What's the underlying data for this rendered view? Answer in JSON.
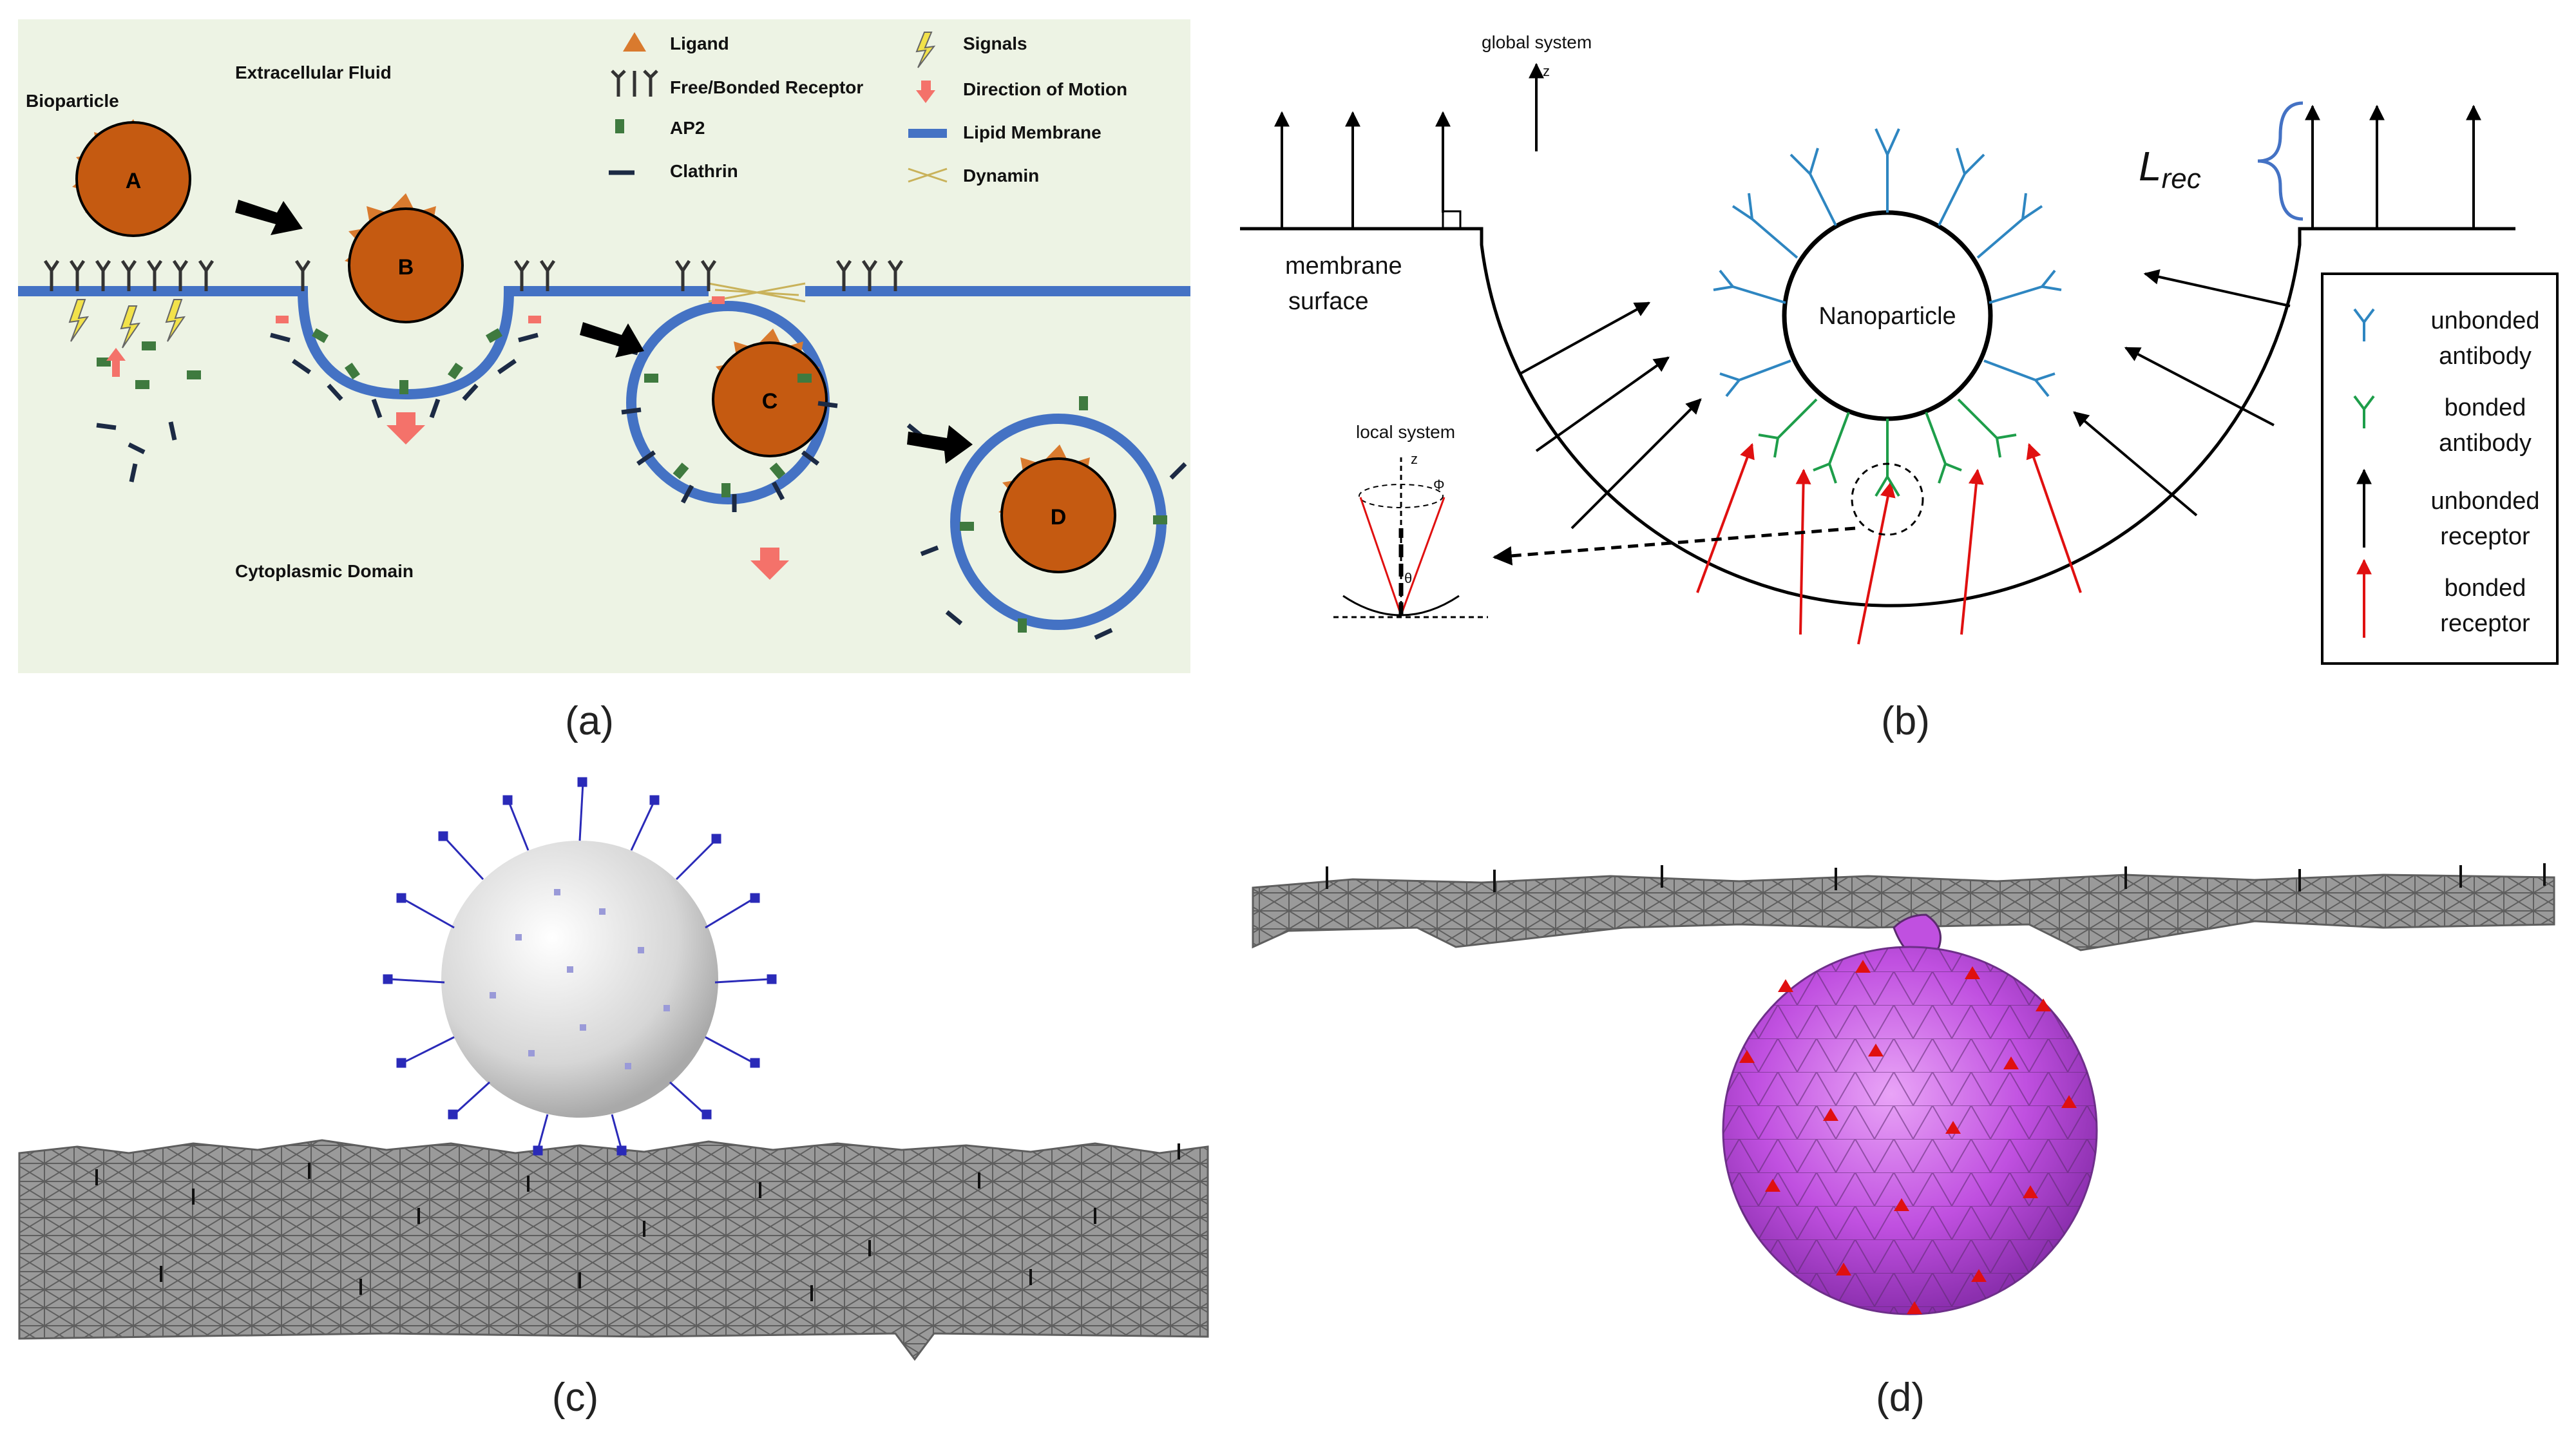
{
  "panel_a": {
    "caption": "(a)",
    "bioparticle": "Bioparticle",
    "extracellular": "Extracellular Fluid",
    "cytoplasmic": "Cytoplasmic Domain",
    "stages": [
      "A",
      "B",
      "C",
      "D"
    ],
    "legend": {
      "ligand": "Ligand",
      "receptor": "Free/Bonded Receptor",
      "ap2": "AP2",
      "clathrin": "Clathrin",
      "signals": "Signals",
      "motion": "Direction of Motion",
      "membrane": "Lipid Membrane",
      "dynamin": "Dynamin"
    },
    "colors": {
      "background": "#edf3e4",
      "membrane": "#4472c4",
      "particle": "#c55a11",
      "ligand": "#d97a2e",
      "ap2": "#3f7a3f",
      "motion": "#f4726a"
    }
  },
  "panel_b": {
    "caption": "(b)",
    "global_system": "global system",
    "z_axis": "z",
    "local_system": "local system",
    "local_z": "z",
    "phi": "Φ",
    "theta": "θ",
    "membrane_surface_1": "membrane",
    "membrane_surface_2": "surface",
    "nanoparticle": "Nanoparticle",
    "lrec_base": "L",
    "lrec_sub": "rec",
    "legend": {
      "unbonded_antibody_1": "unbonded",
      "unbonded_antibody_2": "antibody",
      "bonded_antibody_1": "bonded",
      "bonded_antibody_2": "antibody",
      "unbonded_receptor_1": "unbonded",
      "unbonded_receptor_2": "receptor",
      "bonded_receptor_1": "bonded",
      "bonded_receptor_2": "receptor"
    },
    "colors": {
      "unbonded_antibody": "#2e86c1",
      "bonded_antibody": "#1e9e4a",
      "unbonded_receptor": "#000000",
      "bonded_receptor": "#e01010",
      "bracket": "#4472c4"
    }
  },
  "panel_c": {
    "caption": "(c)",
    "colors": {
      "mesh": "#7a7a7a",
      "antibody": "#2a2ab8",
      "sphere": "#d8d8d8"
    }
  },
  "panel_d": {
    "caption": "(d)",
    "colors": {
      "mesh": "#8a8a8a",
      "particle": "#b445d8",
      "receptor": "#e01010"
    }
  }
}
